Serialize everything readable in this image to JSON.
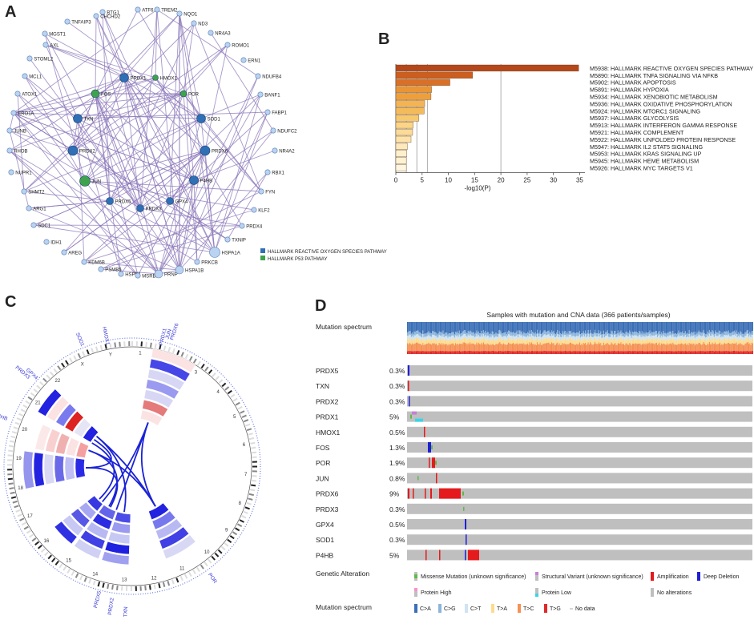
{
  "panels": {
    "a": "A",
    "b": "B",
    "c": "C",
    "d": "D"
  },
  "network": {
    "nodes": [
      {
        "id": "BTG1",
        "type": "gene"
      },
      {
        "id": "ATF6",
        "type": "gene"
      },
      {
        "id": "TREM2",
        "type": "gene"
      },
      {
        "id": "NQO1",
        "type": "gene"
      },
      {
        "id": "CHCHD2",
        "type": "gene"
      },
      {
        "id": "TNFAIP3",
        "type": "gene"
      },
      {
        "id": "ND3",
        "type": "gene"
      },
      {
        "id": "NR4A3",
        "type": "gene"
      },
      {
        "id": "MGST1",
        "type": "gene"
      },
      {
        "id": "AXL",
        "type": "gene"
      },
      {
        "id": "ROMO1",
        "type": "gene"
      },
      {
        "id": "STOML2",
        "type": "gene"
      },
      {
        "id": "ERN1",
        "type": "gene"
      },
      {
        "id": "MCL1",
        "type": "gene"
      },
      {
        "id": "NDUFB4",
        "type": "gene"
      },
      {
        "id": "ATOX1",
        "type": "gene"
      },
      {
        "id": "BANF1",
        "type": "gene"
      },
      {
        "id": "ERO1A",
        "type": "gene"
      },
      {
        "id": "FABP1",
        "type": "gene"
      },
      {
        "id": "JUNB",
        "type": "gene"
      },
      {
        "id": "NDUFC2",
        "type": "gene"
      },
      {
        "id": "RHOB",
        "type": "gene"
      },
      {
        "id": "NR4A2",
        "type": "gene"
      },
      {
        "id": "NUPR1",
        "type": "gene"
      },
      {
        "id": "RBX1",
        "type": "gene"
      },
      {
        "id": "SHMT2",
        "type": "gene"
      },
      {
        "id": "FYN",
        "type": "gene"
      },
      {
        "id": "ARG1",
        "type": "gene"
      },
      {
        "id": "KLF2",
        "type": "gene"
      },
      {
        "id": "SDC1",
        "type": "gene"
      },
      {
        "id": "PRDX4",
        "type": "gene"
      },
      {
        "id": "IDH1",
        "type": "gene"
      },
      {
        "id": "TXNIP",
        "type": "gene"
      },
      {
        "id": "AREG",
        "type": "gene"
      },
      {
        "id": "KDM6B",
        "type": "gene"
      },
      {
        "id": "PSMB5",
        "type": "gene"
      },
      {
        "id": "HSPB1",
        "type": "gene"
      },
      {
        "id": "MSRB2",
        "type": "gene"
      },
      {
        "id": "PRNP",
        "type": "gene"
      },
      {
        "id": "HSPA1B",
        "type": "gene"
      },
      {
        "id": "PRKCB",
        "type": "gene"
      },
      {
        "id": "HSPA1A",
        "type": "gene"
      },
      {
        "id": "PRDX1",
        "type": "ros"
      },
      {
        "id": "HMOX1",
        "type": "p53"
      },
      {
        "id": "FOS",
        "type": "p53"
      },
      {
        "id": "POR",
        "type": "p53"
      },
      {
        "id": "TXN",
        "type": "ros"
      },
      {
        "id": "SOD1",
        "type": "ros"
      },
      {
        "id": "PRDX2",
        "type": "ros"
      },
      {
        "id": "PRDX6",
        "type": "ros"
      },
      {
        "id": "JUN",
        "type": "p53"
      },
      {
        "id": "P4HB",
        "type": "ros"
      },
      {
        "id": "PRDX5",
        "type": "ros"
      },
      {
        "id": "GPX4",
        "type": "ros"
      },
      {
        "id": "PRDX3",
        "type": "ros"
      }
    ],
    "legend": [
      {
        "label": "HALLMARK REACTIVE OXYGEN SPECIES PATHWAY",
        "color": "#2f6fb5"
      },
      {
        "label": "HALLMARK P53 PATHWAY",
        "color": "#3fa34d"
      }
    ]
  },
  "chart_data": {
    "type": "bar",
    "orientation": "horizontal",
    "xlabel": "-log10(P)",
    "xlim": [
      0,
      36
    ],
    "xticks": [
      0,
      5,
      10,
      15,
      20,
      25,
      30,
      35
    ],
    "categories": [
      "M5938: HALLMARK REACTIVE OXYGEN SPECIES PATHWAY",
      "M5890: HALLMARK TNFA SIGNALING VIA NFKB",
      "M5902: HALLMARK APOPTOSIS",
      "M5891: HALLMARK HYPOXIA",
      "M5934: HALLMARK XENOBIOTIC METABOLISM",
      "M5936: HALLMARK OXIDATIVE PHOSPHORYLATION",
      "M5924: HALLMARK MTORC1 SIGNALING",
      "M5937: HALLMARK GLYCOLYSIS",
      "M5913: HALLMARK INTERFERON GAMMA RESPONSE",
      "M5921: HALLMARK COMPLEMENT",
      "M5922: HALLMARK UNFOLDED PROTEIN RESPONSE",
      "M5947: HALLMARK IL2 STAT5 SIGNALING",
      "M5953: HALLMARK KRAS SIGNALING UP",
      "M5945: HALLMARK HEME METABOLISM",
      "M5926: HALLMARK MYC TARGETS V1"
    ],
    "values": [
      34.8,
      14.6,
      10.3,
      6.8,
      6.7,
      5.5,
      5.4,
      4.4,
      3.3,
      3.2,
      2.9,
      2.2,
      2.1,
      2.0,
      2.0
    ],
    "colors": [
      "#b5471a",
      "#cc5e20",
      "#da7027",
      "#ea9434",
      "#ef9f3a",
      "#f4b453",
      "#f5bb5b",
      "#f8c86c",
      "#fad488",
      "#fbdb96",
      "#fde3a9",
      "#fde9bb",
      "#fef0cc",
      "#fef2d3",
      "#fef6de"
    ],
    "reference_lines": [
      2,
      4,
      6,
      20
    ]
  },
  "circos": {
    "labels": [
      "PRDX1",
      "JUN",
      "PRDX6",
      "HMOX1",
      "SOD1",
      "PRDX3",
      "GPX4",
      "P4HB",
      "FOS",
      "PRDX5",
      "PRDX2",
      "TXN",
      "POR"
    ],
    "chromosomes": [
      "1",
      "2",
      "3",
      "4",
      "5",
      "6",
      "7",
      "8",
      "9",
      "10",
      "11",
      "12",
      "13",
      "14",
      "15",
      "16",
      "17",
      "18",
      "19",
      "20",
      "21",
      "22",
      "X",
      "Y"
    ]
  },
  "oncoprint": {
    "title": "Samples with mutation and CNA data (366 patients/samples)",
    "spectrum_label": "Mutation spectrum",
    "genes": [
      {
        "name": "PRDX5",
        "pct": "0.3%"
      },
      {
        "name": "TXN",
        "pct": "0.3%"
      },
      {
        "name": "PRDX2",
        "pct": "0.3%"
      },
      {
        "name": "PRDX1",
        "pct": "5%"
      },
      {
        "name": "HMOX1",
        "pct": "0.5%"
      },
      {
        "name": "FOS",
        "pct": "1.3%"
      },
      {
        "name": "POR",
        "pct": "1.9%"
      },
      {
        "name": "JUN",
        "pct": "0.8%"
      },
      {
        "name": "PRDX6",
        "pct": "9%"
      },
      {
        "name": "PRDX3",
        "pct": "0.3%"
      },
      {
        "name": "GPX4",
        "pct": "0.5%"
      },
      {
        "name": "SOD1",
        "pct": "0.3%"
      },
      {
        "name": "P4HB",
        "pct": "5%"
      }
    ],
    "genetic_alteration_label": "Genetic Alteration",
    "alteration_legend": [
      {
        "label": "Missense Mutation (unknown significance)",
        "color": "#5fb84a"
      },
      {
        "label": "Structural Variant (unknown significance)",
        "color": "#c77fd6"
      },
      {
        "label": "Amplification",
        "color": "#e41a1c"
      },
      {
        "label": "Deep Deletion",
        "color": "#1f1fd6"
      },
      {
        "label": "Protein High",
        "color": "#ff8fc8"
      },
      {
        "label": "Protein Low",
        "color": "#39d4ea"
      },
      {
        "label": "No alterations",
        "color": "#bfbfbf"
      }
    ],
    "spectrum_legend": [
      {
        "label": "C>A",
        "color": "#3b6fb6"
      },
      {
        "label": "C>G",
        "color": "#8cb5dc"
      },
      {
        "label": "C>T",
        "color": "#cfe3f2"
      },
      {
        "label": "T>A",
        "color": "#fddc8f"
      },
      {
        "label": "T>C",
        "color": "#f59155"
      },
      {
        "label": "T>G",
        "color": "#e0292a"
      },
      {
        "label": "No data",
        "color": "#cccccc"
      }
    ]
  }
}
